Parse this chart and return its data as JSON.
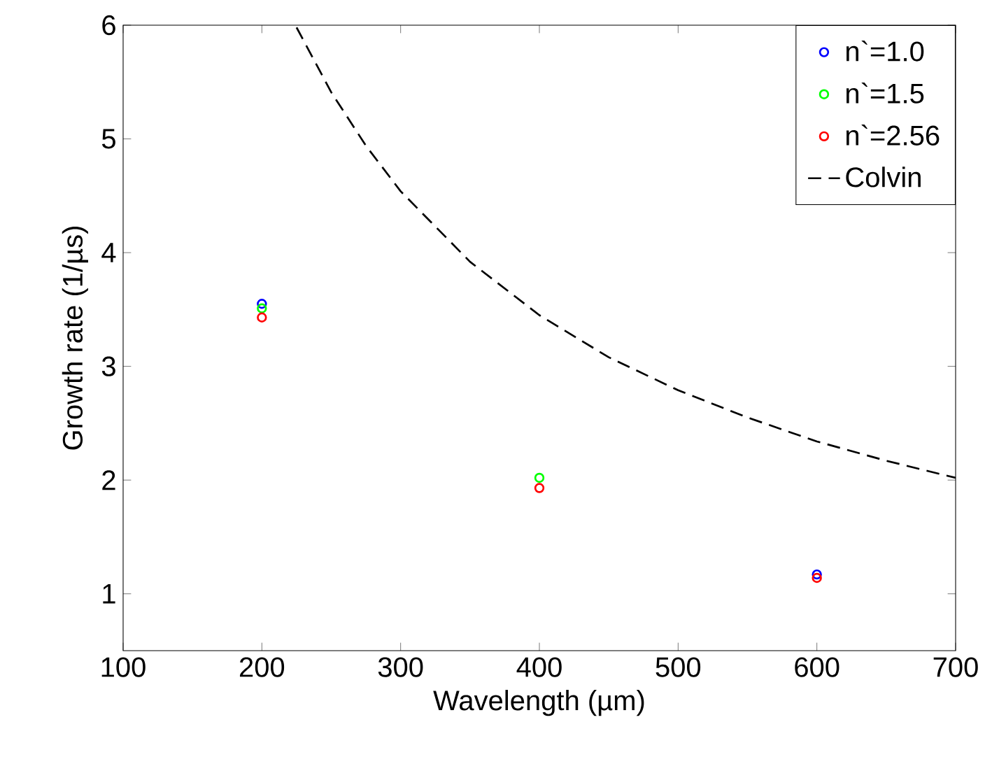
{
  "chart_data": {
    "type": "scatter",
    "xlabel": "Wavelength (µm)",
    "ylabel": "Growth rate (1/µs)",
    "xlim": [
      100,
      700
    ],
    "ylim": [
      0.5,
      6
    ],
    "xticks": [
      100,
      200,
      300,
      400,
      500,
      600,
      700
    ],
    "yticks": [
      1,
      2,
      3,
      4,
      5,
      6
    ],
    "x": [
      200,
      400,
      600
    ],
    "marker": "circle",
    "legend": "top right",
    "grid": false,
    "series": [
      {
        "name": "n`=1.0",
        "color": "#0000ff",
        "values": [
          3.55,
          null,
          1.17
        ]
      },
      {
        "name": "n`=1.5",
        "color": "#00ff00",
        "values": [
          3.51,
          2.02,
          null
        ]
      },
      {
        "name": "n`=2.56",
        "color": "#ff0000",
        "values": [
          3.43,
          1.93,
          1.14
        ]
      },
      {
        "name": "Colvin",
        "type": "line",
        "marker": "none",
        "line_style": "dashed",
        "color": "#000000",
        "x": [
          225,
          250,
          275,
          300,
          350,
          400,
          450,
          500,
          550,
          600,
          650,
          700
        ],
        "values": [
          5.98,
          5.41,
          4.94,
          4.54,
          3.92,
          3.45,
          3.08,
          2.79,
          2.55,
          2.34,
          2.17,
          2.02
        ]
      }
    ]
  }
}
